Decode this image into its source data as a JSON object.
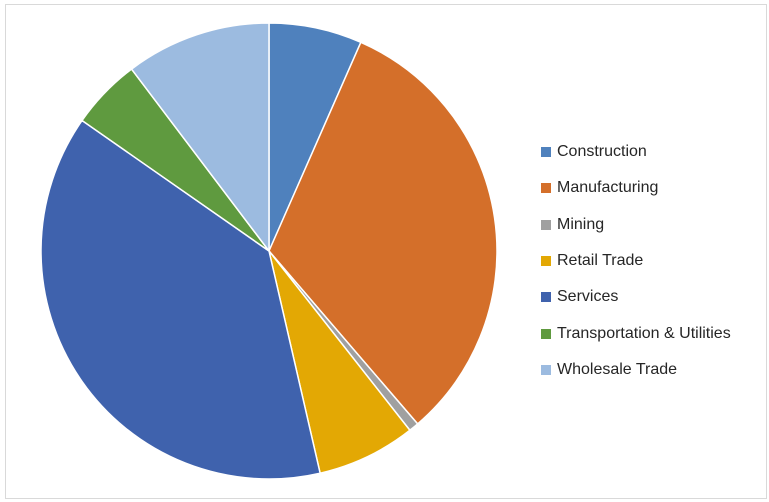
{
  "chart_data": {
    "type": "pie",
    "title": "",
    "start_angle_deg": 0,
    "direction": "clockwise",
    "legend_position": "right",
    "slices": [
      {
        "label": "Construction",
        "value": 6.6,
        "color": "#4f81bd"
      },
      {
        "label": "Manufacturing",
        "value": 32.1,
        "color": "#d46f2a"
      },
      {
        "label": "Mining",
        "value": 0.7,
        "color": "#a0a0a0"
      },
      {
        "label": "Retail Trade",
        "value": 7.0,
        "color": "#e3a804"
      },
      {
        "label": "Services",
        "value": 38.3,
        "color": "#3f62ad"
      },
      {
        "label": "Transportation & Utilities",
        "value": 5.0,
        "color": "#5f9a3f"
      },
      {
        "label": "Wholesale Trade",
        "value": 10.3,
        "color": "#9cbbe0"
      }
    ]
  }
}
